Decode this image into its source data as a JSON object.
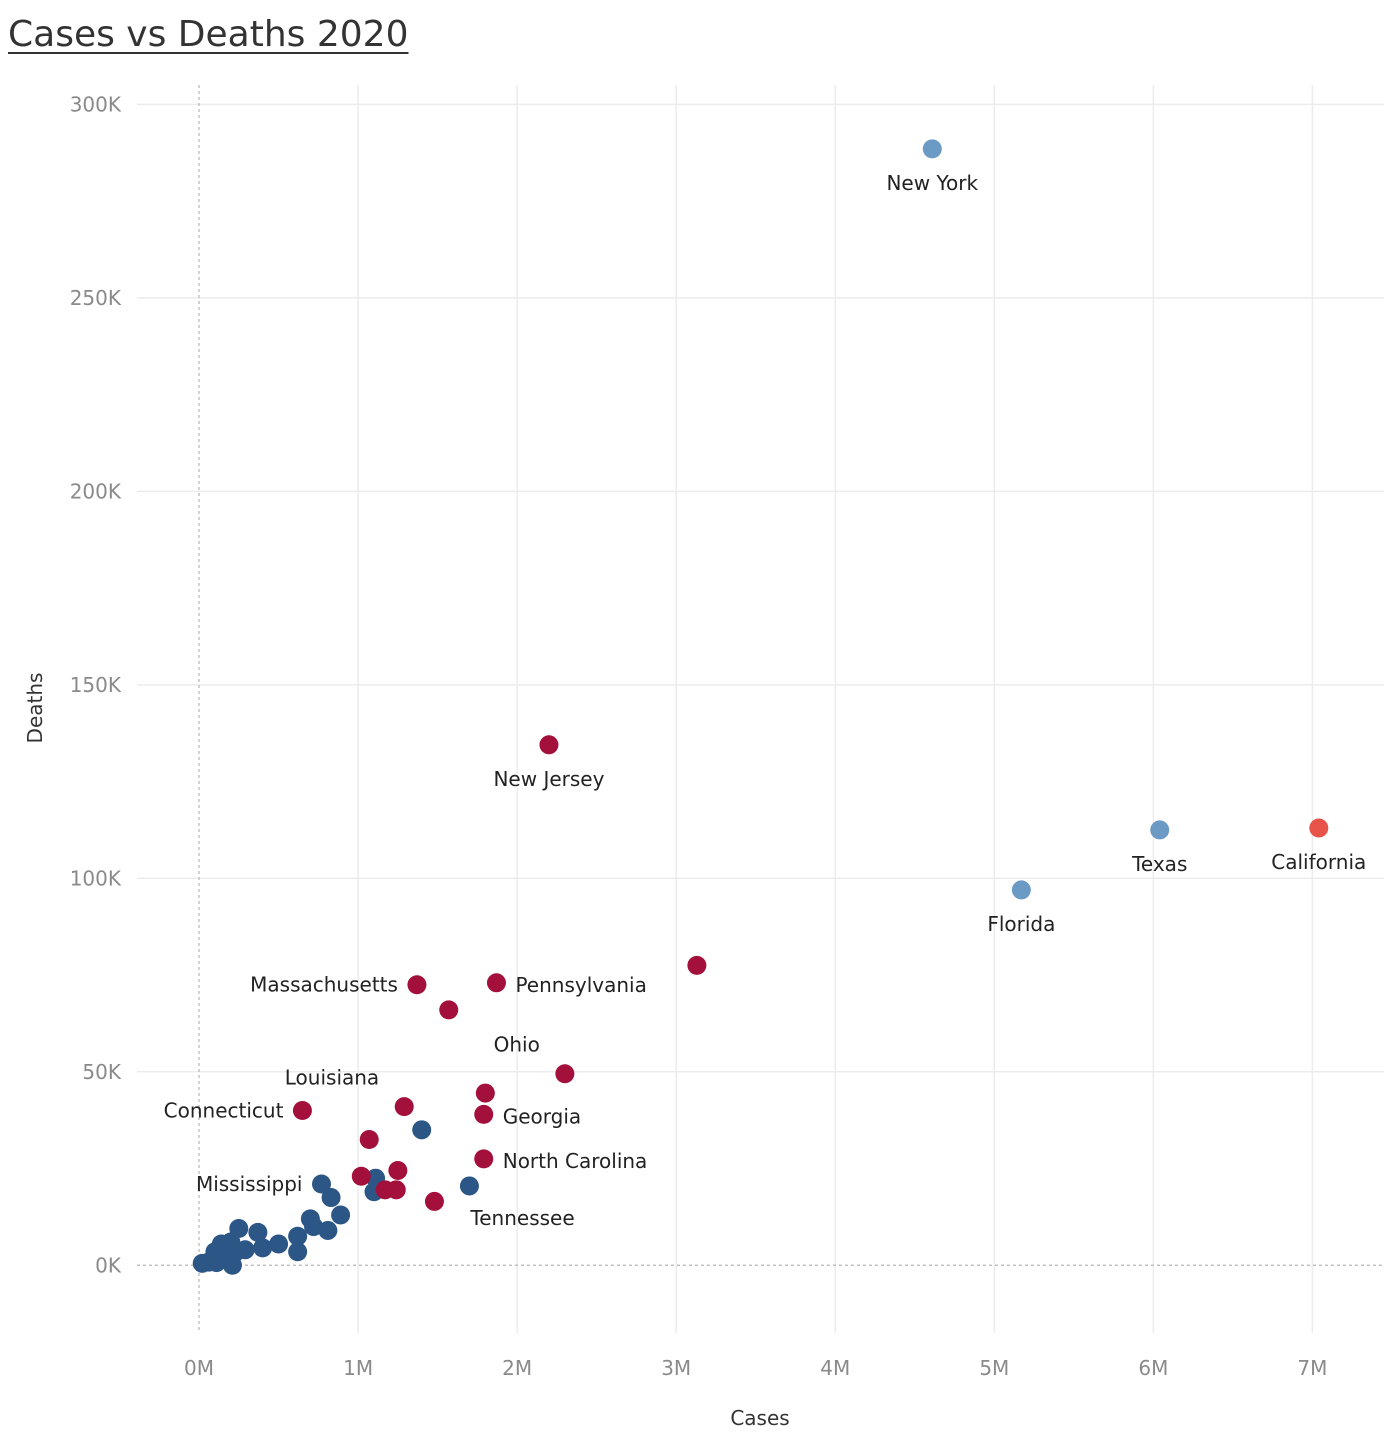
{
  "chart_data": {
    "type": "scatter",
    "title": "Cases vs Deaths 2020",
    "xlabel": "Cases",
    "ylabel": "Deaths",
    "xlim": [
      -0.39,
      7.45
    ],
    "ylim": [
      -17500,
      305000
    ],
    "x_ticks": [
      {
        "value": 0,
        "label": "0M"
      },
      {
        "value": 1,
        "label": "1M"
      },
      {
        "value": 2,
        "label": "2M"
      },
      {
        "value": 3,
        "label": "3M"
      },
      {
        "value": 4,
        "label": "4M"
      },
      {
        "value": 5,
        "label": "5M"
      },
      {
        "value": 6,
        "label": "6M"
      },
      {
        "value": 7,
        "label": "7M"
      }
    ],
    "y_ticks": [
      {
        "value": 0,
        "label": "0K"
      },
      {
        "value": 50000,
        "label": "50K"
      },
      {
        "value": 100000,
        "label": "100K"
      },
      {
        "value": 150000,
        "label": "150K"
      },
      {
        "value": 200000,
        "label": "200K"
      },
      {
        "value": 250000,
        "label": "250K"
      },
      {
        "value": 300000,
        "label": "300K"
      }
    ],
    "grid": true,
    "colors": {
      "dark_blue": "#2b5685",
      "light_blue": "#6b9ac4",
      "crimson": "#a3103b",
      "coral": "#e8544a"
    },
    "points": [
      {
        "x": 4.61,
        "y": 288500,
        "color": "light_blue",
        "label": "New York",
        "anchor": "below"
      },
      {
        "x": 6.04,
        "y": 112500,
        "color": "light_blue",
        "label": "Texas",
        "anchor": "below"
      },
      {
        "x": 5.17,
        "y": 97000,
        "color": "light_blue",
        "label": "Florida",
        "anchor": "below"
      },
      {
        "x": 7.04,
        "y": 113000,
        "color": "coral",
        "label": "California",
        "anchor": "below"
      },
      {
        "x": 2.2,
        "y": 134500,
        "color": "crimson",
        "label": "New Jersey",
        "anchor": "below"
      },
      {
        "x": 3.13,
        "y": 77500,
        "color": "crimson",
        "label": "",
        "anchor": "none"
      },
      {
        "x": 1.37,
        "y": 72500,
        "color": "crimson",
        "label": "Massachusetts",
        "anchor": "left"
      },
      {
        "x": 1.87,
        "y": 73000,
        "color": "crimson",
        "label": "Pennsylvania",
        "anchor": "right"
      },
      {
        "x": 1.57,
        "y": 66000,
        "color": "crimson",
        "label": "",
        "anchor": "none"
      },
      {
        "x": 2.3,
        "y": 49500,
        "color": "crimson",
        "label": "Ohio",
        "anchor": "above-left"
      },
      {
        "x": 1.8,
        "y": 44500,
        "color": "crimson",
        "label": "",
        "anchor": "none"
      },
      {
        "x": 1.79,
        "y": 39000,
        "color": "crimson",
        "label": "Georgia",
        "anchor": "right"
      },
      {
        "x": 1.29,
        "y": 41000,
        "color": "crimson",
        "label": "Louisiana",
        "anchor": "above-left"
      },
      {
        "x": 0.65,
        "y": 40000,
        "color": "crimson",
        "label": "Connecticut",
        "anchor": "left"
      },
      {
        "x": 1.07,
        "y": 32500,
        "color": "crimson",
        "label": "",
        "anchor": "none"
      },
      {
        "x": 1.79,
        "y": 27500,
        "color": "crimson",
        "label": "North Carolina",
        "anchor": "right"
      },
      {
        "x": 1.25,
        "y": 24500,
        "color": "crimson",
        "label": "",
        "anchor": "none"
      },
      {
        "x": 1.02,
        "y": 23000,
        "color": "crimson",
        "label": "",
        "anchor": "none"
      },
      {
        "x": 1.17,
        "y": 19500,
        "color": "crimson",
        "label": "",
        "anchor": "none"
      },
      {
        "x": 1.24,
        "y": 19500,
        "color": "crimson",
        "label": "",
        "anchor": "none"
      },
      {
        "x": 1.48,
        "y": 16500,
        "color": "crimson",
        "label": "",
        "anchor": "none"
      },
      {
        "x": 1.4,
        "y": 35000,
        "color": "dark_blue",
        "label": "",
        "anchor": "none"
      },
      {
        "x": 1.7,
        "y": 20500,
        "color": "dark_blue",
        "label": "Tennessee",
        "anchor": "below-right"
      },
      {
        "x": 1.11,
        "y": 22500,
        "color": "dark_blue",
        "label": "",
        "anchor": "none"
      },
      {
        "x": 1.1,
        "y": 19000,
        "color": "dark_blue",
        "label": "",
        "anchor": "none"
      },
      {
        "x": 0.77,
        "y": 21000,
        "color": "dark_blue",
        "label": "Mississippi",
        "anchor": "left"
      },
      {
        "x": 0.83,
        "y": 17500,
        "color": "dark_blue",
        "label": "",
        "anchor": "none"
      },
      {
        "x": 0.89,
        "y": 13000,
        "color": "dark_blue",
        "label": "",
        "anchor": "none"
      },
      {
        "x": 0.7,
        "y": 12000,
        "color": "dark_blue",
        "label": "",
        "anchor": "none"
      },
      {
        "x": 0.72,
        "y": 10000,
        "color": "dark_blue",
        "label": "",
        "anchor": "none"
      },
      {
        "x": 0.81,
        "y": 9000,
        "color": "dark_blue",
        "label": "",
        "anchor": "none"
      },
      {
        "x": 0.62,
        "y": 7500,
        "color": "dark_blue",
        "label": "",
        "anchor": "none"
      },
      {
        "x": 0.62,
        "y": 3500,
        "color": "dark_blue",
        "label": "",
        "anchor": "none"
      },
      {
        "x": 0.5,
        "y": 5500,
        "color": "dark_blue",
        "label": "",
        "anchor": "none"
      },
      {
        "x": 0.37,
        "y": 8500,
        "color": "dark_blue",
        "label": "",
        "anchor": "none"
      },
      {
        "x": 0.4,
        "y": 4500,
        "color": "dark_blue",
        "label": "",
        "anchor": "none"
      },
      {
        "x": 0.25,
        "y": 9500,
        "color": "dark_blue",
        "label": "",
        "anchor": "none"
      },
      {
        "x": 0.29,
        "y": 4000,
        "color": "dark_blue",
        "label": "",
        "anchor": "none"
      },
      {
        "x": 0.2,
        "y": 6000,
        "color": "dark_blue",
        "label": "",
        "anchor": "none"
      },
      {
        "x": 0.14,
        "y": 5500,
        "color": "dark_blue",
        "label": "",
        "anchor": "none"
      },
      {
        "x": 0.1,
        "y": 3500,
        "color": "dark_blue",
        "label": "",
        "anchor": "none"
      },
      {
        "x": 0.17,
        "y": 2500,
        "color": "dark_blue",
        "label": "",
        "anchor": "none"
      },
      {
        "x": 0.22,
        "y": 3000,
        "color": "dark_blue",
        "label": "",
        "anchor": "none"
      },
      {
        "x": 0.11,
        "y": 700,
        "color": "dark_blue",
        "label": "",
        "anchor": "none"
      },
      {
        "x": 0.21,
        "y": 0,
        "color": "dark_blue",
        "label": "",
        "anchor": "none"
      },
      {
        "x": 0.02,
        "y": 500,
        "color": "dark_blue",
        "label": "",
        "anchor": "none"
      },
      {
        "x": 0.06,
        "y": 800,
        "color": "dark_blue",
        "label": "",
        "anchor": "none"
      }
    ]
  }
}
